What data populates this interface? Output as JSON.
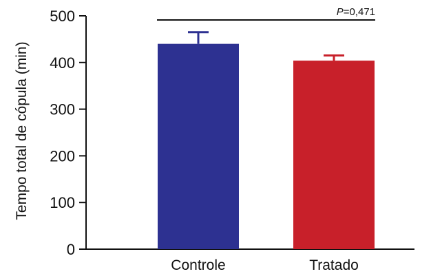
{
  "chart_data": {
    "type": "bar",
    "categories": [
      "Controle",
      "Tratado"
    ],
    "values": [
      440,
      404
    ],
    "errors": [
      25,
      11
    ],
    "colors": [
      "#2d3191",
      "#c8202a"
    ],
    "ylabel": "Tempo total de cópula (min)",
    "ylim": [
      0,
      500
    ],
    "yticks": [
      "0",
      "100",
      "200",
      "300",
      "400",
      "500"
    ],
    "ytick_values": [
      0,
      100,
      200,
      300,
      400,
      500
    ],
    "annotation": {
      "p_symbol": "P",
      "p_rest": "=0,471"
    },
    "grid": false
  }
}
